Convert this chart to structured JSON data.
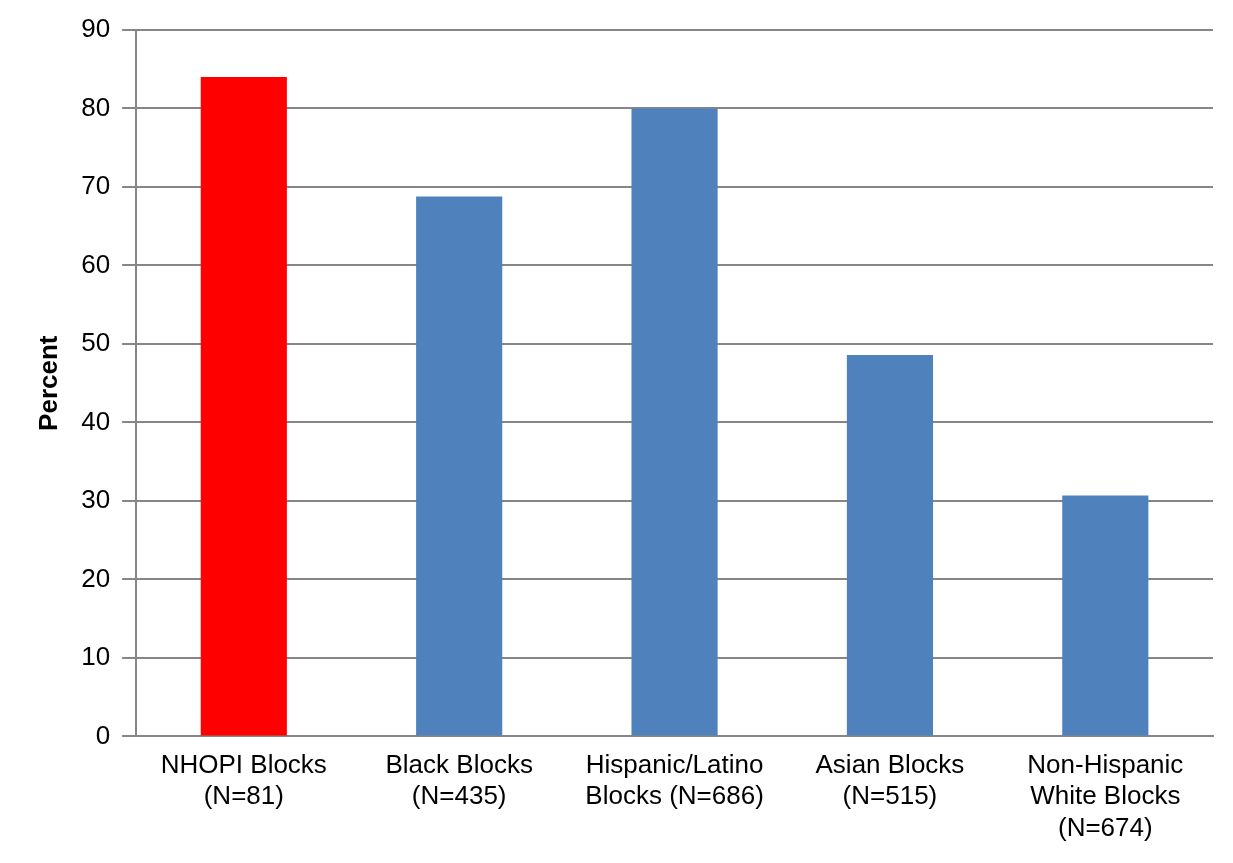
{
  "chart_data": {
    "type": "bar",
    "ylabel": "Percent",
    "categories": [
      "NHOPI Blocks (N=81)",
      "Black Blocks (N=435)",
      "Hispanic/Latino Blocks (N=686)",
      "Asian Blocks (N=515)",
      "Non-Hispanic White Blocks (N=674)"
    ],
    "values": [
      84,
      68.8,
      80,
      48.6,
      30.7
    ],
    "colors": [
      "#ff0000",
      "#4f81bd",
      "#4f81bd",
      "#4f81bd",
      "#4f81bd"
    ],
    "ylim": [
      0,
      90
    ],
    "yticks": [
      0,
      10,
      20,
      30,
      40,
      50,
      60,
      70,
      80,
      90
    ],
    "grid": "y",
    "legend": false
  }
}
